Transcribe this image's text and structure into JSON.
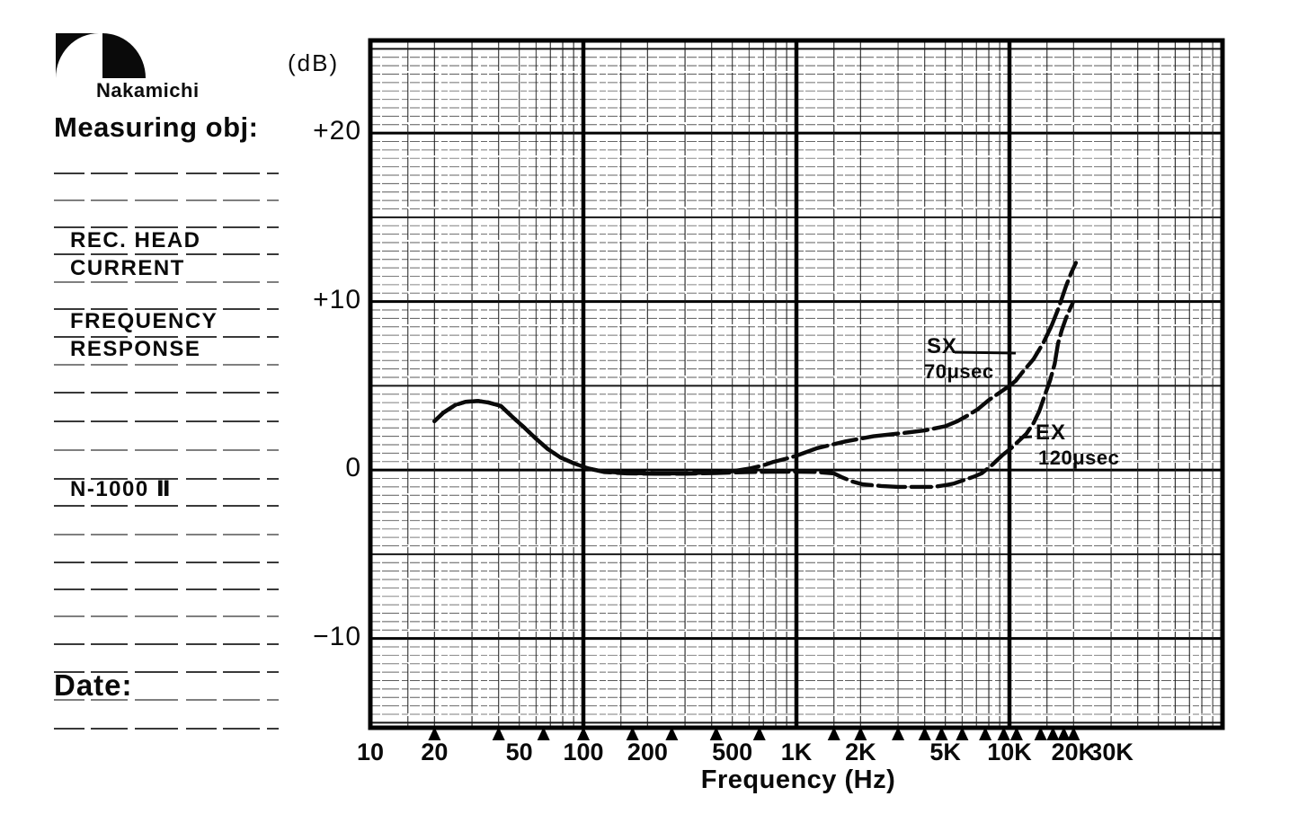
{
  "brand": {
    "name": "Nakamichi"
  },
  "form": {
    "measuring_obj_label": "Measuring obj:",
    "date_label": "Date:",
    "entries": [
      "REC. HEAD",
      "CURRENT",
      "FREQUENCY",
      "RESPONSE",
      "N-1000 Ⅱ"
    ]
  },
  "chart_data": {
    "type": "line",
    "title": "REC. HEAD CURRENT FREQUENCY RESPONSE (N-1000 II)",
    "xlabel": "Frequency (Hz)",
    "ylabel": "(dB)",
    "x_scale": "log",
    "x_range_hz": [
      10,
      100000
    ],
    "y_range_db": [
      -15.3,
      25.5
    ],
    "grid": "on",
    "y_ticks": [
      {
        "label": "+20",
        "db": 20
      },
      {
        "label": "+10",
        "db": 10
      },
      {
        "label": "0",
        "db": 0
      },
      {
        "label": "−10",
        "db": -10
      }
    ],
    "x_ticks": [
      {
        "label": "10",
        "hz": 10
      },
      {
        "label": "20",
        "hz": 20
      },
      {
        "label": "50",
        "hz": 50
      },
      {
        "label": "100",
        "hz": 100
      },
      {
        "label": "200",
        "hz": 200
      },
      {
        "label": "500",
        "hz": 500
      },
      {
        "label": "1K",
        "hz": 1000
      },
      {
        "label": "2K",
        "hz": 2000
      },
      {
        "label": "5K",
        "hz": 5000
      },
      {
        "label": "10K",
        "hz": 10000
      },
      {
        "label": "20K",
        "hz": 20000
      },
      {
        "label": "30K",
        "hz": 30000
      }
    ],
    "marker_freqs_hz": [
      20,
      40,
      65,
      100,
      170,
      260,
      420,
      670,
      1500,
      2000,
      3000,
      4000,
      4800,
      6000,
      7700,
      9400,
      10800,
      14000,
      16000,
      18000,
      20000
    ],
    "series": [
      {
        "name": "SX 70μsec",
        "label_top": "SX",
        "label_bottom": "70μsec",
        "points": [
          [
            20,
            2.9
          ],
          [
            22,
            3.4
          ],
          [
            25,
            3.85
          ],
          [
            28,
            4.05
          ],
          [
            32,
            4.1
          ],
          [
            36,
            4.0
          ],
          [
            41,
            3.8
          ],
          [
            46,
            3.2
          ],
          [
            53,
            2.5
          ],
          [
            60,
            1.85
          ],
          [
            68,
            1.25
          ],
          [
            78,
            0.75
          ],
          [
            90,
            0.4
          ],
          [
            105,
            0.1
          ],
          [
            125,
            -0.1
          ],
          [
            160,
            -0.18
          ],
          [
            220,
            -0.2
          ],
          [
            300,
            -0.2
          ],
          [
            400,
            -0.15
          ],
          [
            500,
            -0.08
          ],
          [
            600,
            0.08
          ],
          [
            700,
            0.28
          ],
          [
            780,
            0.48
          ],
          [
            900,
            0.68
          ],
          [
            1000,
            0.85
          ],
          [
            1250,
            1.3
          ],
          [
            1700,
            1.7
          ],
          [
            2300,
            2.0
          ],
          [
            3200,
            2.2
          ],
          [
            4000,
            2.35
          ],
          [
            5000,
            2.6
          ],
          [
            5700,
            2.9
          ],
          [
            6300,
            3.2
          ],
          [
            7100,
            3.6
          ],
          [
            8000,
            4.15
          ],
          [
            9000,
            4.6
          ],
          [
            10000,
            5.0
          ],
          [
            10700,
            5.3
          ],
          [
            11500,
            5.8
          ],
          [
            13000,
            6.6
          ],
          [
            14500,
            7.6
          ],
          [
            15800,
            8.6
          ],
          [
            17000,
            9.6
          ],
          [
            18400,
            10.9
          ],
          [
            19500,
            11.7
          ],
          [
            20500,
            12.3
          ]
        ]
      },
      {
        "name": "EX 120μsec",
        "label_top": "EX",
        "label_bottom": "120μsec",
        "points": [
          [
            20,
            2.9
          ],
          [
            22,
            3.4
          ],
          [
            25,
            3.85
          ],
          [
            28,
            4.05
          ],
          [
            32,
            4.1
          ],
          [
            36,
            4.0
          ],
          [
            41,
            3.8
          ],
          [
            46,
            3.2
          ],
          [
            53,
            2.5
          ],
          [
            60,
            1.85
          ],
          [
            68,
            1.25
          ],
          [
            78,
            0.75
          ],
          [
            90,
            0.4
          ],
          [
            105,
            0.1
          ],
          [
            125,
            -0.12
          ],
          [
            160,
            -0.2
          ],
          [
            220,
            -0.22
          ],
          [
            300,
            -0.22
          ],
          [
            420,
            -0.18
          ],
          [
            600,
            -0.12
          ],
          [
            800,
            -0.1
          ],
          [
            1000,
            -0.1
          ],
          [
            1250,
            -0.12
          ],
          [
            1500,
            -0.2
          ],
          [
            1650,
            -0.45
          ],
          [
            1850,
            -0.7
          ],
          [
            2050,
            -0.85
          ],
          [
            2500,
            -0.95
          ],
          [
            3000,
            -1.0
          ],
          [
            3700,
            -1.0
          ],
          [
            4400,
            -1.0
          ],
          [
            5000,
            -0.9
          ],
          [
            5500,
            -0.8
          ],
          [
            6100,
            -0.6
          ],
          [
            6800,
            -0.4
          ],
          [
            7400,
            -0.2
          ],
          [
            8200,
            0.25
          ],
          [
            9300,
            0.9
          ],
          [
            10200,
            1.3
          ],
          [
            11000,
            1.7
          ],
          [
            12000,
            2.15
          ],
          [
            13000,
            2.8
          ],
          [
            13800,
            3.5
          ],
          [
            14800,
            4.6
          ],
          [
            15500,
            5.3
          ],
          [
            16300,
            6.3
          ],
          [
            16900,
            7.5
          ],
          [
            17600,
            8.3
          ],
          [
            18400,
            9.0
          ],
          [
            19300,
            9.6
          ],
          [
            19800,
            9.9
          ]
        ]
      }
    ]
  }
}
